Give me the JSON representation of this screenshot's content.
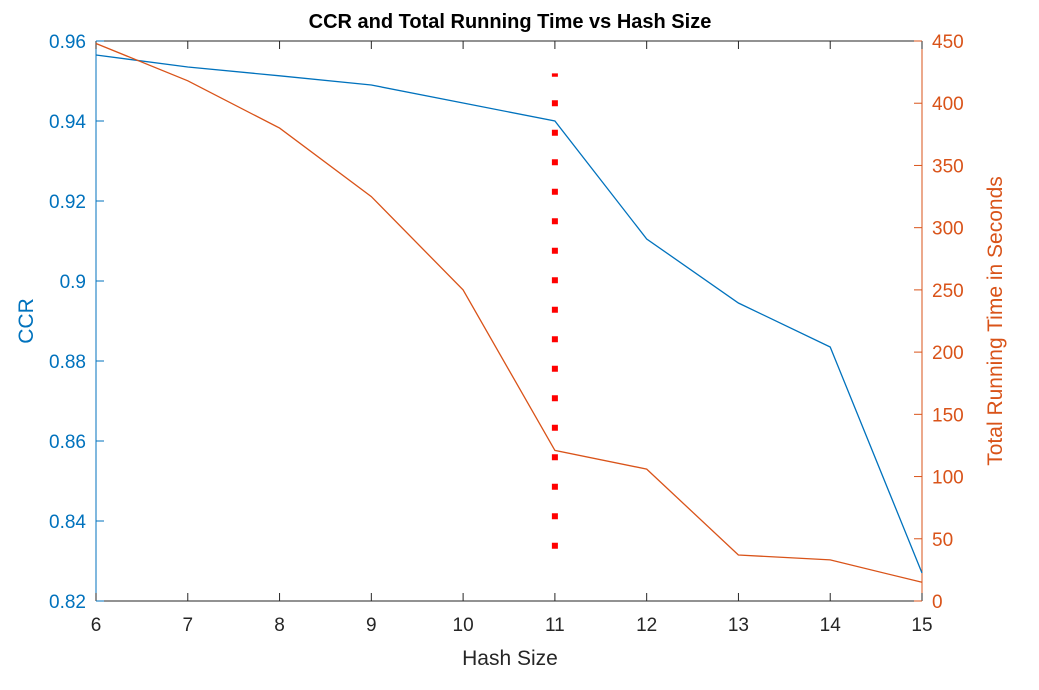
{
  "chart_data": {
    "type": "line",
    "title": "CCR and Total Running Time vs Hash Size",
    "xlabel": "Hash Size",
    "ylabel_left": "CCR",
    "ylabel_right": "Total Running Time in Seconds",
    "x": [
      6,
      7,
      8,
      9,
      10,
      11,
      12,
      13,
      14,
      15
    ],
    "xlim": [
      6,
      15
    ],
    "xticks": [
      "6",
      "7",
      "8",
      "9",
      "10",
      "11",
      "12",
      "13",
      "14",
      "15"
    ],
    "ylim_left": [
      0.82,
      0.96
    ],
    "yticks_left": [
      "0.82",
      "0.84",
      "0.86",
      "0.88",
      "0.9",
      "0.92",
      "0.94",
      "0.96"
    ],
    "ylim_right": [
      0,
      450
    ],
    "yticks_right": [
      "0",
      "50",
      "100",
      "150",
      "200",
      "250",
      "300",
      "350",
      "400",
      "450"
    ],
    "grid": false,
    "series": [
      {
        "axis": "left",
        "color": "#0072BD",
        "values": [
          0.9565,
          0.9535,
          0.9513,
          0.949,
          0.9445,
          0.94,
          0.9105,
          0.8945,
          0.8835,
          0.827
        ]
      },
      {
        "axis": "right",
        "color": "#D95319",
        "values": [
          448,
          418,
          380,
          325,
          250,
          121,
          106,
          37,
          33,
          15
        ]
      }
    ],
    "annotations": [
      {
        "type": "vertical-dotted-line",
        "x": 11,
        "y_from_right_axis": 42,
        "y_to_right_axis": 424,
        "color": "#FF0000"
      }
    ]
  }
}
